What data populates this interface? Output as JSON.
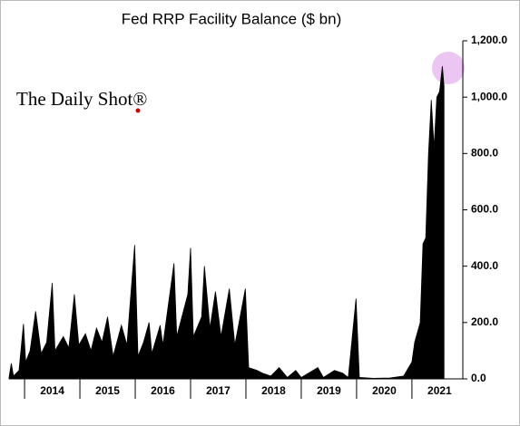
{
  "chart_data": {
    "type": "area",
    "title": "Fed RRP Facility Balance ($ bn)",
    "watermark": "The Daily Shot®",
    "series": [
      {
        "name": "RRP",
        "color": "#000000",
        "x": [
          2013.72,
          2013.76,
          2013.8,
          2013.9,
          2013.98,
          2014.02,
          2014.1,
          2014.2,
          2014.3,
          2014.4,
          2014.5,
          2014.55,
          2014.7,
          2014.8,
          2014.9,
          2014.98,
          2015.1,
          2015.2,
          2015.3,
          2015.4,
          2015.5,
          2015.6,
          2015.75,
          2015.85,
          2015.99,
          2016.05,
          2016.15,
          2016.25,
          2016.3,
          2016.45,
          2016.5,
          2016.7,
          2016.75,
          2016.95,
          2017.0,
          2017.05,
          2017.2,
          2017.25,
          2017.35,
          2017.45,
          2017.55,
          2017.7,
          2017.8,
          2017.99,
          2018.05,
          2018.2,
          2018.3,
          2018.45,
          2018.6,
          2018.75,
          2018.9,
          2019.0,
          2019.3,
          2019.4,
          2019.6,
          2019.75,
          2019.85,
          2019.99,
          2020.05,
          2020.3,
          2020.6,
          2020.85,
          2021.0,
          2021.05,
          2021.15,
          2021.2,
          2021.25,
          2021.3,
          2021.35,
          2021.4,
          2021.45,
          2021.5,
          2021.55,
          2021.58
        ],
        "values": [
          5,
          55,
          10,
          30,
          195,
          60,
          100,
          240,
          90,
          130,
          340,
          100,
          150,
          110,
          300,
          120,
          160,
          100,
          180,
          130,
          220,
          80,
          190,
          120,
          475,
          80,
          130,
          200,
          90,
          190,
          120,
          410,
          150,
          300,
          465,
          150,
          220,
          400,
          180,
          310,
          150,
          320,
          120,
          320,
          40,
          30,
          20,
          10,
          40,
          5,
          30,
          5,
          40,
          5,
          30,
          20,
          5,
          285,
          5,
          2,
          3,
          10,
          60,
          130,
          200,
          480,
          500,
          800,
          990,
          820,
          1000,
          1020,
          1110,
          1040
        ]
      }
    ],
    "xlim": [
      2013.72,
      2021.92
    ],
    "xticks": [
      {
        "value": 2014.5,
        "label": "2014"
      },
      {
        "value": 2015.5,
        "label": "2015"
      },
      {
        "value": 2016.5,
        "label": "2016"
      },
      {
        "value": 2017.5,
        "label": "2017"
      },
      {
        "value": 2018.5,
        "label": "2018"
      },
      {
        "value": 2019.5,
        "label": "2019"
      },
      {
        "value": 2020.5,
        "label": "2020"
      },
      {
        "value": 2021.5,
        "label": "2021"
      }
    ],
    "ylim": [
      0,
      1200
    ],
    "yticks": [
      {
        "value": 0,
        "label": "0.0"
      },
      {
        "value": 200,
        "label": "200.0"
      },
      {
        "value": 400,
        "label": "400.0"
      },
      {
        "value": 600,
        "label": "600.0"
      },
      {
        "value": 800,
        "label": "800.0"
      },
      {
        "value": 1000,
        "label": "1,000.0"
      },
      {
        "value": 1200,
        "label": "1,200.0"
      }
    ]
  }
}
